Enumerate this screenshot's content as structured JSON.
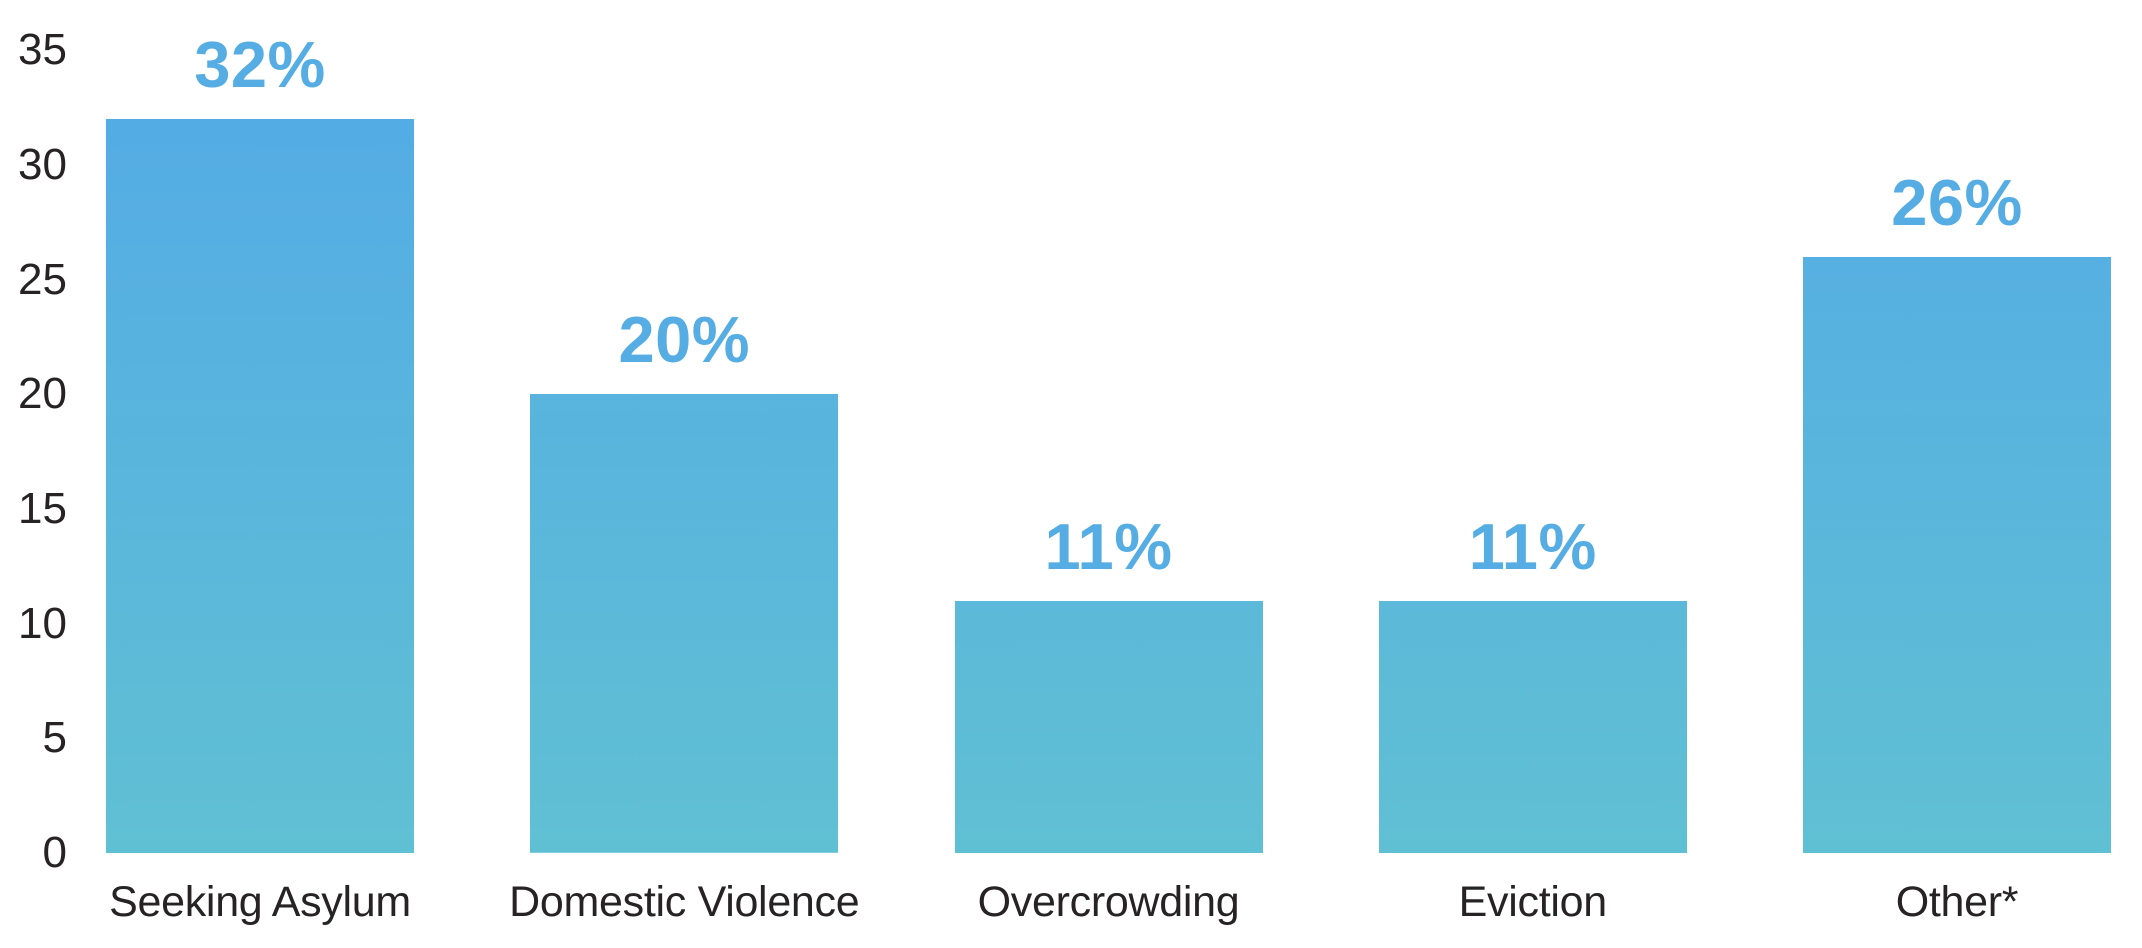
{
  "chart_data": {
    "type": "bar",
    "categories": [
      "Seeking Asylum",
      "Domestic Violence",
      "Overcrowding",
      "Eviction",
      "Other*"
    ],
    "values": [
      32,
      20,
      11,
      11,
      26
    ],
    "value_labels": [
      "32%",
      "20%",
      "11%",
      "11%",
      "26%"
    ],
    "y_ticks": [
      0,
      5,
      10,
      15,
      20,
      25,
      30,
      35
    ],
    "ylim": [
      0,
      35
    ],
    "title": "",
    "xlabel": "",
    "ylabel": "",
    "grid": false,
    "legend": false,
    "colors": {
      "bar_gradient_top": "#53AAE6",
      "bar_gradient_bottom": "#60C0D3",
      "value_label_text": "#55ADE3",
      "axis_text": "#272324",
      "background": "#ffffff"
    }
  }
}
